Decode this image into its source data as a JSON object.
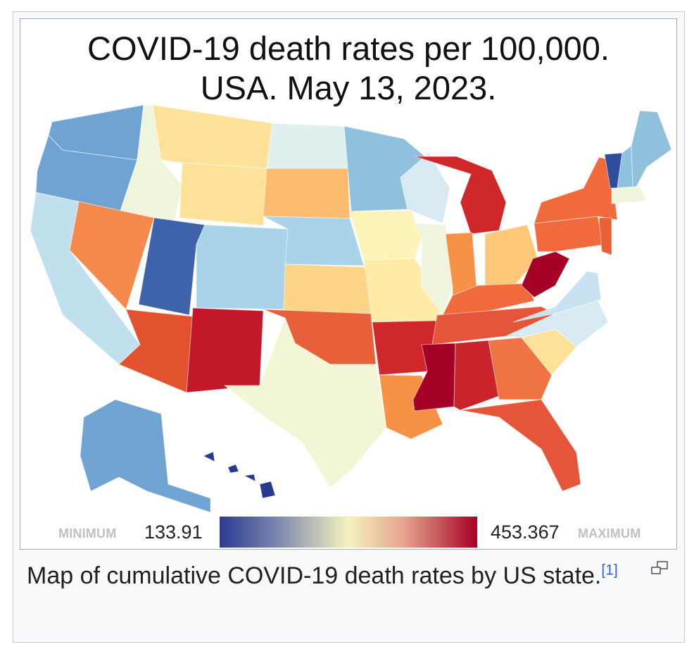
{
  "title": "COVID-19 death rates per 100,000.\nUSA. May 13, 2023.",
  "legend": {
    "min_label": "MINIMUM",
    "min_value": "133.91",
    "max_label": "MAXIMUM",
    "max_value": "453.367",
    "gradient_colors": [
      "#2b3b93",
      "#f6f3c0",
      "#a50026"
    ]
  },
  "caption": {
    "text": "Map of cumulative COVID-19 death rates by US state.",
    "ref": "[1]"
  },
  "icons": {
    "magnify": "magnify-icon"
  },
  "state_colors": {
    "WA": "#6fa3d2",
    "OR": "#6fa3d2",
    "CA": "#bfe0ec",
    "ID": "#eef5dc",
    "NV": "#f58a4c",
    "UT": "#3f63aa",
    "AZ": "#e2522e",
    "MT": "#fde199",
    "WY": "#fde199",
    "CO": "#a8d3e8",
    "NM": "#c3172a",
    "ND": "#dff0ee",
    "SD": "#fcbb6d",
    "NE": "#a8d3e8",
    "KS": "#fdd588",
    "OK": "#e8603a",
    "TX": "#f3f6d4",
    "MN": "#8fc0de",
    "IA": "#fcf3b6",
    "MO": "#fdeba6",
    "AR": "#d0272b",
    "LA": "#f79146",
    "WI": "#d7eaf2",
    "IL": "#eef5dc",
    "MI": "#d0272b",
    "IN": "#f79146",
    "OH": "#fdc979",
    "KY": "#f06a3c",
    "TN": "#e6553a",
    "MS": "#a50026",
    "AL": "#c9232b",
    "GA": "#f07443",
    "FL": "#e6553a",
    "SC": "#fde199",
    "NC": "#d7eaf2",
    "VA": "#c8e3ef",
    "WV": "#a50026",
    "PA": "#f06a3c",
    "NY": "#f06a3c",
    "VT": "#2d4d9e",
    "NH": "#8fc0de",
    "ME": "#8fc0de",
    "MA": "#eef5dc",
    "NJ": "#e8603a",
    "AK": "#6fa3d2",
    "HI": "#283a8c"
  }
}
